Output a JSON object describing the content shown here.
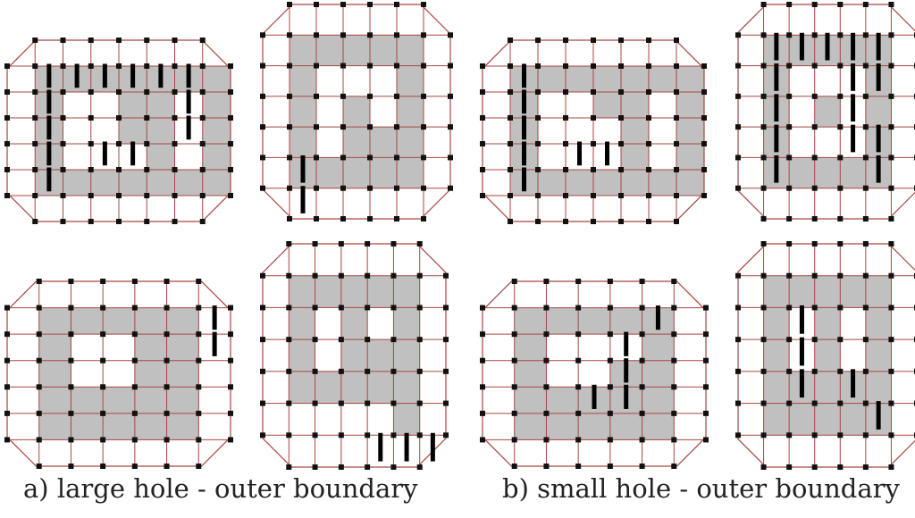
{
  "captions": {
    "a": "a) large hole - outer boundary",
    "b": "b) small hole - outer boundary"
  },
  "colors": {
    "grid_line": "#a8463f",
    "node": "#111111",
    "region_fill": "#c0c0c0",
    "boundary_stroke": "#000000"
  },
  "panels": [
    {
      "id": "a-top-left",
      "rows": [
        "00000000",
        "01111111",
        "01001101",
        "01001101",
        "01000101",
        "01111111",
        "00000000"
      ],
      "boundary": [
        [
          1,
          1
        ],
        [
          1,
          2
        ],
        [
          1,
          3
        ],
        [
          1,
          4
        ],
        [
          1,
          5
        ],
        [
          1,
          6
        ],
        [
          2,
          1
        ],
        [
          2,
          6
        ],
        [
          3,
          1
        ],
        [
          3,
          6
        ],
        [
          4,
          1
        ],
        [
          4,
          3
        ],
        [
          4,
          4
        ],
        [
          5,
          1
        ]
      ]
    },
    {
      "id": "a-top-right",
      "rows": [
        "0000000",
        "0111110",
        "0100010",
        "0101010",
        "0101110",
        "0111110",
        "0000000"
      ],
      "boundary": [
        [
          5,
          1
        ],
        [
          6,
          1
        ]
      ]
    },
    {
      "id": "a-bottom-left",
      "rows": [
        "0000000",
        "0111110",
        "0100110",
        "0100110",
        "0111110",
        "0111110",
        "0000000"
      ],
      "boundary": [
        [
          1,
          6
        ],
        [
          2,
          6
        ]
      ]
    },
    {
      "id": "a-bottom-right",
      "rows": [
        "0000000",
        "0111110",
        "0101010",
        "0101110",
        "0111110",
        "0000010",
        "0000000"
      ],
      "boundary": [
        [
          6,
          4
        ],
        [
          6,
          5
        ],
        [
          6,
          6
        ]
      ]
    },
    {
      "id": "b-top-left",
      "rows": [
        "00000000",
        "01111111",
        "01001101",
        "01000101",
        "01000101",
        "01111111",
        "00000000"
      ],
      "boundary": [
        [
          1,
          1
        ],
        [
          2,
          1
        ],
        [
          3,
          1
        ],
        [
          4,
          1
        ],
        [
          5,
          1
        ],
        [
          4,
          3
        ],
        [
          4,
          4
        ]
      ]
    },
    {
      "id": "b-top-right",
      "rows": [
        "0000000",
        "0111110",
        "0100010",
        "0101010",
        "0100010",
        "0111110",
        "0000000"
      ],
      "boundary": [
        [
          1,
          1
        ],
        [
          1,
          2
        ],
        [
          1,
          3
        ],
        [
          1,
          4
        ],
        [
          1,
          5
        ],
        [
          2,
          1
        ],
        [
          2,
          4
        ],
        [
          2,
          5
        ],
        [
          3,
          1
        ],
        [
          3,
          4
        ],
        [
          4,
          1
        ],
        [
          4,
          4
        ],
        [
          4,
          5
        ],
        [
          5,
          1
        ],
        [
          5,
          5
        ]
      ]
    },
    {
      "id": "b-bottom-left",
      "rows": [
        "0000000",
        "0111110",
        "0100010",
        "0100110",
        "0111110",
        "0111110",
        "0000000"
      ],
      "boundary": [
        [
          1,
          5
        ],
        [
          2,
          4
        ],
        [
          3,
          4
        ],
        [
          4,
          3
        ],
        [
          4,
          4
        ]
      ]
    },
    {
      "id": "b-bottom-right",
      "rows": [
        "0000000",
        "0111110",
        "0101010",
        "0101010",
        "0111110",
        "0111110",
        "0000000"
      ],
      "boundary": [
        [
          2,
          2
        ],
        [
          3,
          2
        ],
        [
          4,
          2
        ],
        [
          4,
          4
        ],
        [
          5,
          5
        ]
      ]
    }
  ]
}
